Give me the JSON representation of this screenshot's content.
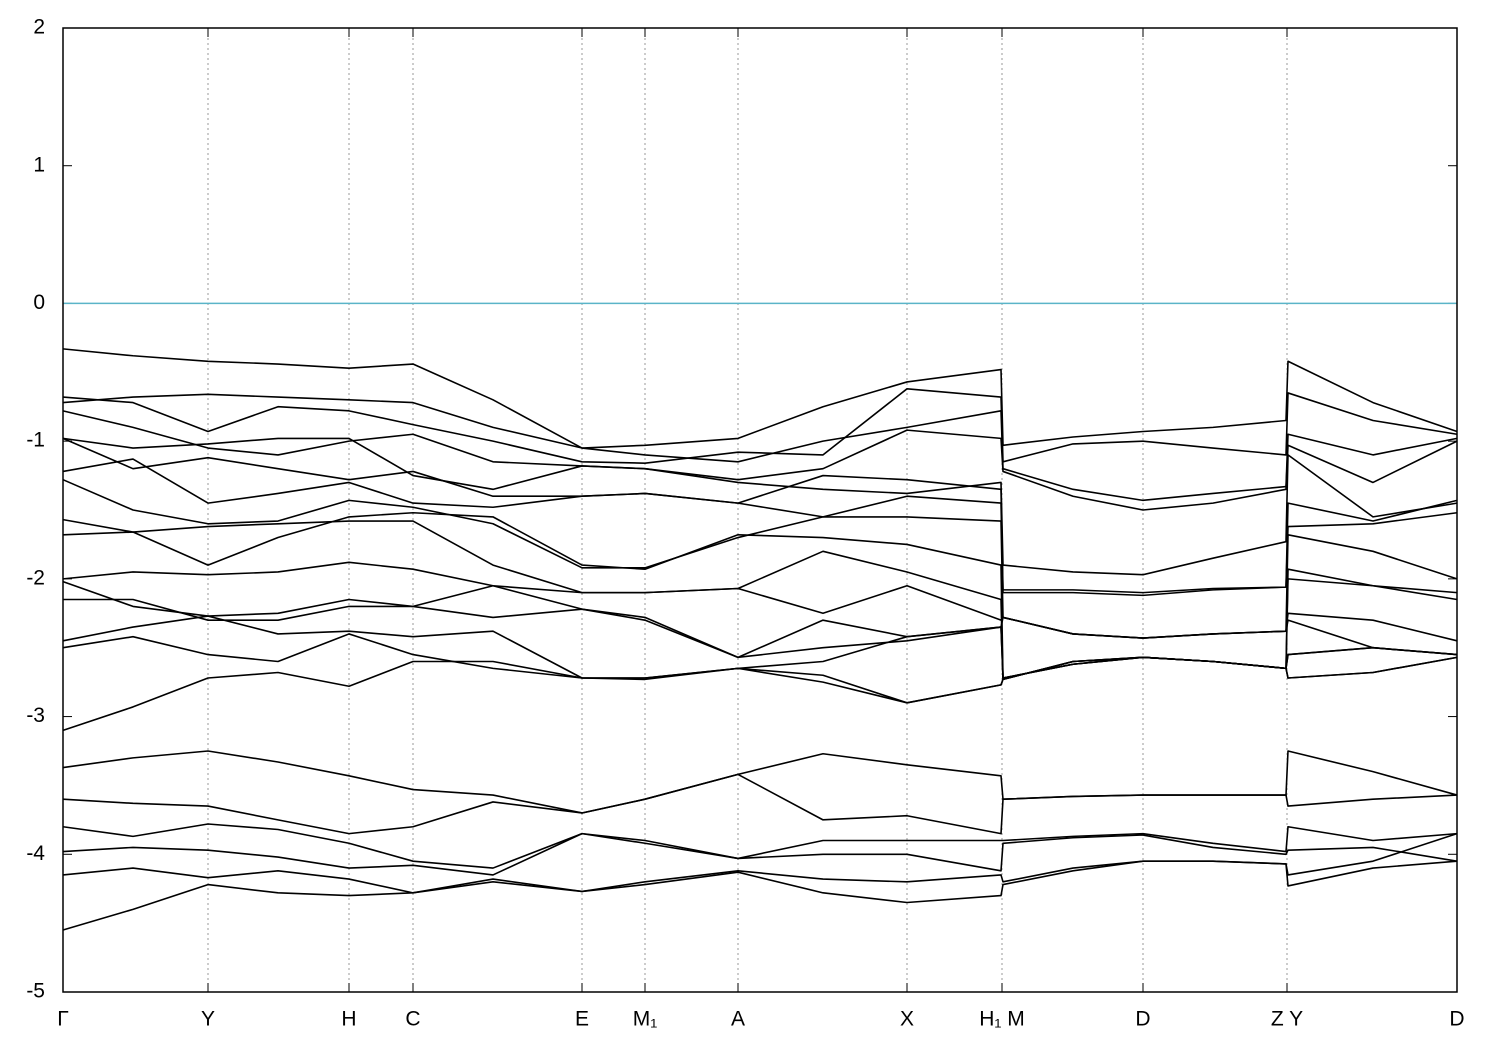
{
  "chart_data": {
    "type": "line",
    "x": [
      0,
      0.7,
      1.45,
      2.15,
      2.86,
      3.5,
      4.3,
      5.19,
      5.82,
      6.75,
      7.6,
      8.44,
      9.38,
      9.4,
      10.1,
      10.8,
      11.5,
      12.23,
      12.25,
      13.1,
      13.94
    ],
    "xlim": [
      0,
      13.94
    ],
    "ylim": [
      -5,
      2
    ],
    "yticks": [
      2,
      1,
      0,
      -1,
      -2,
      -3,
      -4,
      -5
    ],
    "xticks": [
      {
        "value": 0,
        "label": "Γ"
      },
      {
        "value": 1.45,
        "label": "Y"
      },
      {
        "value": 2.86,
        "label": "H"
      },
      {
        "value": 3.5,
        "label": "C"
      },
      {
        "value": 5.19,
        "label": "E"
      },
      {
        "value": 5.82,
        "label": "M₁"
      },
      {
        "value": 6.75,
        "label": "A"
      },
      {
        "value": 8.44,
        "label": "X"
      },
      {
        "value": 9.39,
        "label": "H₁ M"
      },
      {
        "value": 10.8,
        "label": "D"
      },
      {
        "value": 12.24,
        "label": "Z Y"
      },
      {
        "value": 13.94,
        "label": "D"
      }
    ],
    "xgrid": true,
    "hlines": [
      {
        "value": 0,
        "color": "#5ab4c8"
      }
    ],
    "line_color": "#000000",
    "series": [
      {
        "values": [
          -0.33,
          -0.38,
          -0.42,
          -0.44,
          -0.47,
          -0.44,
          -0.7,
          -1.05,
          -1.03,
          -0.98,
          -0.75,
          -0.57,
          -0.48,
          -1.03,
          -0.97,
          -0.93,
          -0.9,
          -0.85,
          -0.42,
          -0.72,
          -0.93
        ]
      },
      {
        "values": [
          -0.68,
          -0.72,
          -0.93,
          -0.75,
          -0.78,
          -0.88,
          -1.0,
          -1.15,
          -1.16,
          -1.08,
          -1.1,
          -0.62,
          -0.68,
          -1.15,
          -1.02,
          -1.0,
          -1.05,
          -1.1,
          -0.65,
          -0.85,
          -0.95
        ]
      },
      {
        "values": [
          -0.72,
          -0.68,
          -0.66,
          -0.68,
          -0.7,
          -0.72,
          -0.9,
          -1.05,
          -1.1,
          -1.15,
          -1.0,
          -0.9,
          -0.78,
          -1.2,
          -1.35,
          -1.43,
          -1.38,
          -1.33,
          -0.95,
          -1.1,
          -0.98
        ]
      },
      {
        "values": [
          -0.78,
          -0.9,
          -1.05,
          -1.1,
          -1.0,
          -0.95,
          -1.15,
          -1.18,
          -1.2,
          -1.28,
          -1.2,
          -0.92,
          -0.98,
          -1.22,
          -1.4,
          -1.5,
          -1.45,
          -1.35,
          -1.03,
          -1.3,
          -1.0
        ]
      },
      {
        "values": [
          -0.98,
          -1.05,
          -1.02,
          -0.98,
          -0.98,
          -1.25,
          -1.35,
          -1.18,
          -1.2,
          -1.3,
          -1.35,
          -1.38,
          -1.3,
          -1.9,
          -1.95,
          -1.97,
          -1.85,
          -1.73,
          -1.1,
          -1.55,
          -1.45
        ]
      },
      {
        "values": [
          -0.98,
          -1.2,
          -1.12,
          -1.2,
          -1.28,
          -1.22,
          -1.4,
          -1.4,
          -1.38,
          -1.45,
          -1.25,
          -1.28,
          -1.35,
          -2.08,
          -2.08,
          -2.1,
          -2.07,
          -2.06,
          -1.45,
          -1.58,
          -1.43
        ]
      },
      {
        "values": [
          -1.22,
          -1.13,
          -1.45,
          -1.38,
          -1.3,
          -1.45,
          -1.48,
          -1.4,
          -1.38,
          -1.45,
          -1.55,
          -1.4,
          -1.45,
          -2.1,
          -2.1,
          -2.12,
          -2.08,
          -2.06,
          -1.62,
          -1.6,
          -1.52
        ]
      },
      {
        "values": [
          -1.28,
          -1.5,
          -1.6,
          -1.58,
          -1.43,
          -1.48,
          -1.6,
          -1.92,
          -1.92,
          -1.7,
          -1.55,
          -1.55,
          -1.58,
          -2.28,
          -2.4,
          -2.43,
          -2.4,
          -2.38,
          -1.68,
          -1.8,
          -2.0
        ]
      },
      {
        "values": [
          -1.57,
          -1.66,
          -1.9,
          -1.7,
          -1.55,
          -1.52,
          -1.55,
          -1.9,
          -1.93,
          -1.68,
          -1.7,
          -1.75,
          -1.9,
          -2.72,
          -2.62,
          -2.57,
          -2.6,
          -2.65,
          -1.93,
          -2.05,
          -2.1
        ]
      },
      {
        "values": [
          -1.68,
          -1.66,
          -1.62,
          -1.6,
          -1.58,
          -1.58,
          -1.9,
          -2.1,
          -2.1,
          -2.07,
          -1.8,
          -1.95,
          -2.15,
          -2.73,
          -2.6,
          -2.57,
          -2.6,
          -2.65,
          -2.0,
          -2.05,
          -2.15
        ]
      },
      {
        "values": [
          -2.0,
          -1.95,
          -1.97,
          -1.95,
          -1.88,
          -1.93,
          -2.05,
          -2.1,
          -2.1,
          -2.07,
          -2.25,
          -2.05,
          -2.3,
          -2.28,
          -2.4,
          -2.43,
          -2.4,
          -2.38,
          -2.25,
          -2.3,
          -2.45
        ]
      },
      {
        "values": [
          -2.02,
          -2.2,
          -2.27,
          -2.25,
          -2.15,
          -2.2,
          -2.05,
          -2.22,
          -2.28,
          -2.57,
          -2.3,
          -2.42,
          -2.35,
          -2.28,
          -2.4,
          -2.43,
          -2.4,
          -2.38,
          -2.3,
          -2.5,
          -2.55
        ]
      },
      {
        "values": [
          -2.15,
          -2.15,
          -2.3,
          -2.3,
          -2.2,
          -2.2,
          -2.28,
          -2.22,
          -2.3,
          -2.57,
          -2.5,
          -2.45,
          -2.35,
          -2.72,
          -2.62,
          -2.57,
          -2.6,
          -2.65,
          -2.55,
          -2.5,
          -2.55
        ]
      },
      {
        "values": [
          -2.45,
          -2.35,
          -2.27,
          -2.4,
          -2.38,
          -2.42,
          -2.38,
          -2.72,
          -2.72,
          -2.65,
          -2.6,
          -2.42,
          -2.35,
          -2.72,
          -2.62,
          -2.57,
          -2.6,
          -2.65,
          -2.72,
          -2.68,
          -2.57
        ]
      },
      {
        "values": [
          -2.5,
          -2.42,
          -2.55,
          -2.6,
          -2.4,
          -2.55,
          -2.65,
          -2.72,
          -2.73,
          -2.65,
          -2.75,
          -2.9,
          -2.77,
          -2.73,
          -2.6,
          -2.57,
          -2.6,
          -2.65,
          -2.55,
          -2.5,
          -2.55
        ]
      },
      {
        "values": [
          -3.1,
          -2.93,
          -2.72,
          -2.68,
          -2.78,
          -2.6,
          -2.6,
          -2.72,
          -2.72,
          -2.65,
          -2.7,
          -2.9,
          -2.77,
          -2.73,
          -2.6,
          -2.57,
          -2.6,
          -2.65,
          -2.72,
          -2.68,
          -2.57
        ]
      },
      {
        "values": [
          -3.37,
          -3.3,
          -3.25,
          -3.33,
          -3.43,
          -3.53,
          -3.57,
          -3.7,
          -3.6,
          -3.42,
          -3.27,
          -3.35,
          -3.43,
          -3.6,
          -3.58,
          -3.57,
          -3.57,
          -3.57,
          -3.25,
          -3.4,
          -3.57
        ]
      },
      {
        "values": [
          -3.6,
          -3.63,
          -3.65,
          -3.75,
          -3.85,
          -3.8,
          -3.62,
          -3.7,
          -3.6,
          -3.42,
          -3.75,
          -3.72,
          -3.85,
          -3.6,
          -3.58,
          -3.57,
          -3.57,
          -3.57,
          -3.65,
          -3.6,
          -3.57
        ]
      },
      {
        "values": [
          -3.8,
          -3.87,
          -3.78,
          -3.82,
          -3.92,
          -4.05,
          -4.1,
          -3.85,
          -3.9,
          -4.03,
          -3.9,
          -3.9,
          -3.9,
          -3.9,
          -3.87,
          -3.85,
          -3.92,
          -3.98,
          -3.8,
          -3.9,
          -3.85
        ]
      },
      {
        "values": [
          -3.98,
          -3.95,
          -3.97,
          -4.02,
          -4.1,
          -4.08,
          -4.15,
          -3.85,
          -3.92,
          -4.03,
          -4.0,
          -4.0,
          -4.12,
          -3.92,
          -3.88,
          -3.86,
          -3.95,
          -4.0,
          -3.97,
          -3.95,
          -4.05
        ]
      },
      {
        "values": [
          -4.15,
          -4.1,
          -4.17,
          -4.12,
          -4.18,
          -4.28,
          -4.2,
          -4.27,
          -4.2,
          -4.12,
          -4.18,
          -4.2,
          -4.15,
          -4.2,
          -4.1,
          -4.05,
          -4.05,
          -4.07,
          -4.15,
          -4.05,
          -3.85
        ]
      },
      {
        "values": [
          -4.55,
          -4.4,
          -4.22,
          -4.28,
          -4.3,
          -4.28,
          -4.18,
          -4.27,
          -4.22,
          -4.13,
          -4.28,
          -4.35,
          -4.3,
          -4.22,
          -4.12,
          -4.05,
          -4.05,
          -4.07,
          -4.23,
          -4.1,
          -4.05
        ]
      }
    ]
  }
}
